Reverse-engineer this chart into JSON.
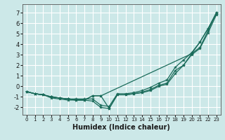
{
  "xlabel": "Humidex (Indice chaleur)",
  "ylabel": "",
  "background_color": "#cce8e8",
  "grid_color": "#ffffff",
  "line_color": "#1a6b5a",
  "xlim": [
    -0.5,
    23.5
  ],
  "ylim": [
    -2.7,
    7.8
  ],
  "xticks": [
    0,
    1,
    2,
    3,
    4,
    5,
    6,
    7,
    8,
    9,
    10,
    11,
    12,
    13,
    14,
    15,
    16,
    17,
    18,
    19,
    20,
    21,
    22,
    23
  ],
  "yticks": [
    -2,
    -1,
    0,
    1,
    2,
    3,
    4,
    5,
    6,
    7
  ],
  "series": [
    [
      0,
      -0.5,
      1,
      -0.7,
      2,
      -0.8,
      3,
      -1.1,
      4,
      -1.2,
      5,
      -1.3,
      6,
      -1.3,
      7,
      -1.3,
      8,
      -1.4,
      9,
      -2.0,
      10,
      -2.1,
      11,
      -0.8,
      12,
      -0.8,
      13,
      -0.7,
      14,
      -0.55,
      15,
      -0.3,
      16,
      0.1,
      17,
      0.3,
      18,
      1.5,
      19,
      2.0,
      20,
      3.1,
      21,
      3.7,
      22,
      5.3,
      23,
      7.0
    ],
    [
      0,
      -0.5,
      1,
      -0.7,
      2,
      -0.8,
      3,
      -1.0,
      4,
      -1.1,
      5,
      -1.2,
      6,
      -1.2,
      7,
      -1.2,
      8,
      -1.2,
      9,
      -1.8,
      10,
      -1.9,
      11,
      -0.7,
      12,
      -0.7,
      13,
      -0.6,
      14,
      -0.4,
      15,
      -0.1,
      16,
      0.3,
      17,
      0.6,
      18,
      1.8,
      19,
      2.5,
      20,
      3.2,
      21,
      4.2,
      22,
      5.5,
      23,
      6.9
    ],
    [
      0,
      -0.5,
      1,
      -0.7,
      2,
      -0.8,
      3,
      -1.0,
      4,
      -1.1,
      5,
      -1.2,
      6,
      -1.3,
      7,
      -1.3,
      8,
      -0.9,
      9,
      -0.9,
      20,
      3.1,
      21,
      4.2,
      22,
      5.5,
      23,
      7.0
    ],
    [
      0,
      -0.5,
      1,
      -0.7,
      2,
      -0.8,
      3,
      -1.0,
      4,
      -1.1,
      5,
      -1.2,
      6,
      -1.3,
      7,
      -1.3,
      8,
      -0.9,
      9,
      -0.9,
      10,
      -2.1,
      11,
      -0.8,
      12,
      -0.8,
      13,
      -0.7,
      14,
      -0.6,
      15,
      -0.4,
      16,
      0.0,
      17,
      0.2,
      18,
      1.2,
      19,
      2.0,
      20,
      3.0,
      21,
      3.6,
      22,
      5.1,
      23,
      6.8
    ]
  ]
}
